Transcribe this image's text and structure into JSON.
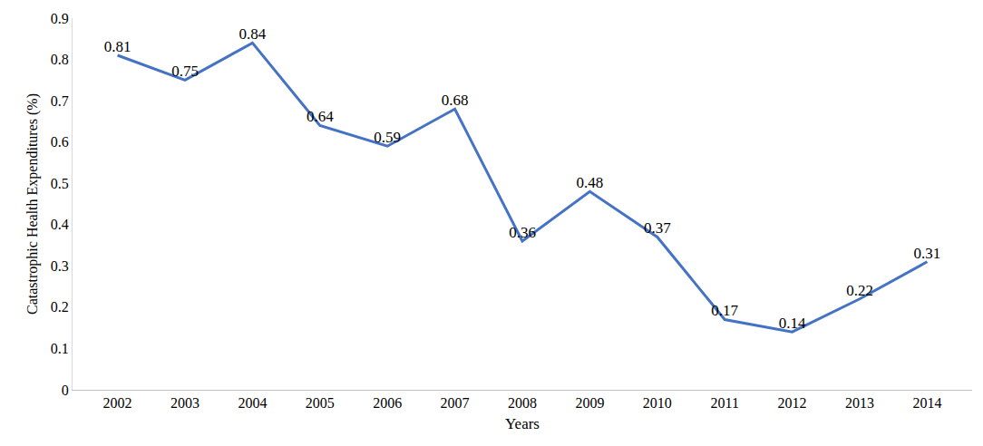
{
  "chart_data": {
    "type": "line",
    "x_label": "Years",
    "y_label": "Catastrophic Health Expenditures (%)",
    "categories": [
      "2002",
      "2003",
      "2004",
      "2005",
      "2006",
      "2007",
      "2008",
      "2009",
      "2010",
      "2011",
      "2012",
      "2013",
      "2014"
    ],
    "values": [
      0.81,
      0.75,
      0.84,
      0.64,
      0.59,
      0.68,
      0.36,
      0.48,
      0.37,
      0.17,
      0.14,
      0.22,
      0.31
    ],
    "color": "#4472c4",
    "ylim": [
      0,
      0.9
    ],
    "yticks": [
      0,
      0.1,
      0.2,
      0.3,
      0.4,
      0.5,
      0.6,
      0.7,
      0.8,
      0.9
    ],
    "grid": false,
    "data_labels": true
  }
}
